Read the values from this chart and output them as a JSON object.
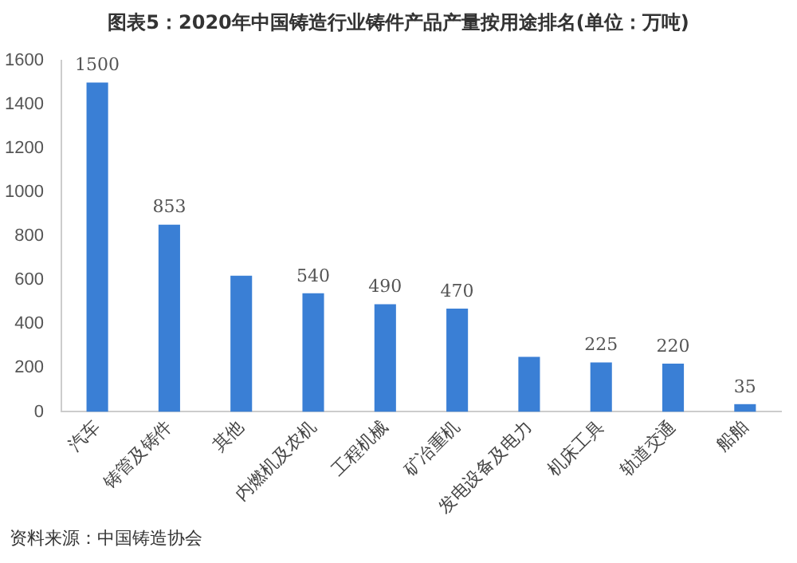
{
  "chart_data": {
    "type": "bar",
    "title": "图表5：2020年中国铸造行业铸件产品产量按用途排名(单位：万吨)",
    "categories": [
      "汽车",
      "铸管及铸件",
      "其他",
      "内燃机及农机",
      "工程机械",
      "矿冶重机",
      "发电设备及电力",
      "机床工具",
      "轨道交通",
      "船舶"
    ],
    "values": [
      1500,
      853,
      620,
      540,
      490,
      470,
      250,
      225,
      220,
      35
    ],
    "value_labels": [
      "1500",
      "853",
      null,
      "540",
      "490",
      "470",
      null,
      "225",
      "220",
      "35"
    ],
    "color": "#3a7fd5",
    "ylim": [
      0,
      1600
    ],
    "yticks": [
      0,
      200,
      400,
      600,
      800,
      1000,
      1200,
      1400,
      1600
    ],
    "grid": false,
    "annotations": [
      "资料来源：中国铸造协会"
    ]
  }
}
